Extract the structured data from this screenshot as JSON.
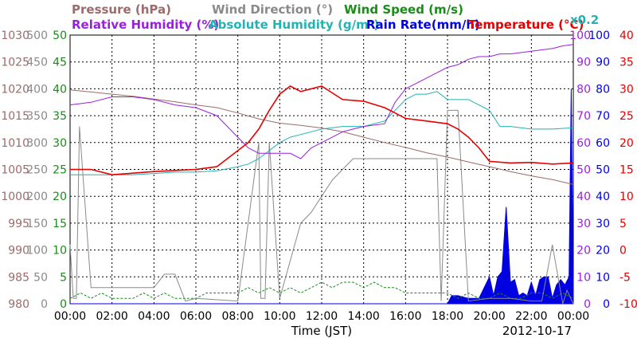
{
  "chart_data": {
    "type": "line",
    "date_label": "2012-10-17",
    "xlabel": "Time (JST)",
    "x_ticks": [
      "00:00",
      "02:00",
      "04:00",
      "06:00",
      "08:00",
      "10:00",
      "12:00",
      "14:00",
      "16:00",
      "18:00",
      "20:00",
      "22:00",
      "00:00"
    ],
    "legend": [
      {
        "key": "pressure",
        "label": "Pressure (hPa)",
        "color": "#9c6b6b"
      },
      {
        "key": "wdir",
        "label": "Wind Direction (°)",
        "color": "#8a8a8a"
      },
      {
        "key": "wspd",
        "label": "Wind Speed (m/s)",
        "color": "#1a8c1a"
      },
      {
        "key": "rh",
        "label": "Relative Humidity (%)",
        "color": "#9a1fe0"
      },
      {
        "key": "ah",
        "label": "Absolute Humidity (g/m³)",
        "color": "#22b4b4"
      },
      {
        "key": "rain",
        "label": "Rain Rate(mm/h)",
        "color": "#0000e0"
      },
      {
        "key": "temp",
        "label": "Temperature (°C)",
        "color": "#e60000"
      },
      {
        "key": "ah_scale",
        "label": "x0.2",
        "color": "#22b4b4"
      }
    ],
    "axes": {
      "pressure": {
        "ticks": [
          "1030",
          "1025",
          "1020",
          "1015",
          "1010",
          "1005",
          "1000",
          "995",
          "990",
          "985",
          "980"
        ],
        "range": [
          980,
          1030
        ],
        "color": "#9c6b6b"
      },
      "wdir": {
        "ticks": [
          "500",
          "450",
          "400",
          "350",
          "300",
          "250",
          "200",
          "150",
          "100",
          "50",
          "0"
        ],
        "range": [
          0,
          500
        ],
        "color": "#8a8a8a"
      },
      "wspd": {
        "ticks": [
          "50",
          "45",
          "40",
          "35",
          "30",
          "25",
          "20",
          "15",
          "10",
          "5",
          "0"
        ],
        "range": [
          0,
          50
        ],
        "color": "#1a8c1a"
      },
      "rh": {
        "ticks": [
          "100",
          "90",
          "80",
          "70",
          "60",
          "50",
          "40",
          "30",
          "20",
          "10",
          "0"
        ],
        "range": [
          0,
          100
        ],
        "color": "#9a1fe0"
      },
      "rain": {
        "ticks": [
          "100",
          "90",
          "80",
          "70",
          "60",
          "50",
          "40",
          "30",
          "20",
          "10",
          "0"
        ],
        "range": [
          0,
          100
        ],
        "color": "#0000e0"
      },
      "temp": {
        "ticks": [
          "40",
          "35",
          "30",
          "25",
          "20",
          "15",
          "10",
          "5",
          "0",
          "-5",
          "-10"
        ],
        "range": [
          -10,
          40
        ],
        "color": "#e60000"
      }
    },
    "series": [
      {
        "key": "pressure",
        "x": [
          0,
          1,
          2,
          3,
          4,
          5,
          6,
          7,
          8,
          9,
          10,
          11,
          12,
          13,
          14,
          15,
          16,
          17,
          18,
          19,
          20,
          21,
          22,
          23,
          24
        ],
        "y": [
          1019.8,
          1019.4,
          1019,
          1018.6,
          1018.1,
          1017.6,
          1017,
          1016.5,
          1015.5,
          1014.4,
          1013.6,
          1013.2,
          1012.7,
          1012,
          1011,
          1010,
          1009.1,
          1008.1,
          1007.3,
          1006.4,
          1005.5,
          1004.6,
          1003.8,
          1003.1,
          1002.2
        ]
      },
      {
        "key": "temp",
        "x": [
          0,
          1,
          2,
          3,
          4,
          5,
          6,
          7,
          8,
          8.5,
          9,
          9.5,
          10,
          10.5,
          11,
          12,
          13,
          14,
          15,
          15.5,
          16,
          17,
          18,
          18.5,
          19,
          19.5,
          20,
          21,
          22,
          23,
          24
        ],
        "y": [
          15,
          15,
          14,
          14.3,
          14.6,
          14.8,
          15,
          15.5,
          18.5,
          20,
          22.5,
          26,
          29,
          30.5,
          29.5,
          30.5,
          28,
          27.7,
          26.5,
          25.5,
          24.5,
          24,
          23.5,
          22.5,
          21,
          19,
          16.5,
          16.2,
          16.3,
          16,
          16.2
        ]
      },
      {
        "key": "rh",
        "x": [
          0,
          1,
          2,
          3,
          4,
          5,
          6,
          7,
          7.5,
          8,
          8.5,
          9,
          9.5,
          10,
          10.5,
          11,
          11.5,
          12,
          12.5,
          13,
          13.5,
          14,
          15,
          15.5,
          16,
          16.5,
          17,
          17.5,
          18,
          18.5,
          19,
          19.5,
          20,
          20.5,
          21,
          22,
          23,
          23.5,
          24
        ],
        "y": [
          74,
          75,
          77,
          77,
          76,
          74,
          73,
          70,
          66,
          62,
          58,
          56,
          56,
          56,
          56,
          54,
          58,
          60,
          62,
          64,
          65,
          66,
          67,
          75,
          80,
          82,
          84,
          86,
          88,
          89,
          91,
          92,
          92,
          93,
          93,
          94,
          95,
          96,
          96.5
        ]
      },
      {
        "key": "ah",
        "x": [
          0,
          1,
          2,
          3,
          4,
          5,
          6,
          7,
          8,
          8.5,
          9,
          9.5,
          10,
          10.5,
          11,
          11.5,
          12,
          13,
          13.5,
          14,
          15,
          16,
          16.5,
          17,
          17.5,
          18,
          19,
          20,
          20.5,
          21,
          22,
          23,
          24
        ],
        "y": [
          48,
          48,
          48,
          48,
          48.5,
          49,
          49,
          49.5,
          51,
          52,
          54,
          57,
          60,
          62,
          63,
          64,
          65,
          66,
          66,
          66,
          68,
          76,
          78,
          78,
          79,
          76,
          76,
          72,
          66,
          66,
          65,
          65,
          65.5
        ]
      },
      {
        "key": "wdir",
        "x": [
          0,
          0.15,
          0.3,
          0.45,
          1,
          2,
          3,
          4,
          4.5,
          5,
          5.5,
          6,
          8,
          9,
          9.1,
          9.3,
          9.5,
          10,
          10.5,
          11,
          11.5,
          12,
          12.5,
          13,
          13.5,
          14,
          14.5,
          15,
          16,
          17,
          17.5,
          17.7,
          18,
          18.5,
          19,
          20,
          20.5,
          21,
          22,
          22.5,
          23,
          23.5,
          23.7,
          24
        ],
        "y": [
          110,
          10,
          10,
          330,
          30,
          30,
          30,
          30,
          55,
          55,
          5,
          10,
          5,
          300,
          10,
          10,
          300,
          10,
          80,
          150,
          170,
          200,
          230,
          250,
          270,
          270,
          270,
          270,
          270,
          270,
          270,
          5,
          360,
          360,
          5,
          10,
          10,
          10,
          5,
          5,
          110,
          0,
          25,
          0
        ]
      },
      {
        "key": "wspd",
        "x": [
          0,
          0.5,
          1,
          1.5,
          2,
          2.5,
          3,
          3.5,
          4,
          4.5,
          5,
          5.5,
          6,
          6.5,
          7,
          7.5,
          8,
          8.5,
          9,
          9.5,
          10,
          10.5,
          11,
          11.5,
          12,
          12.5,
          13,
          13.5,
          14,
          14.5,
          15,
          15.5,
          16,
          16.5,
          17,
          17.5,
          18,
          18.5,
          19,
          19.5,
          20,
          20.5,
          21,
          21.5,
          22,
          22.5,
          23,
          23.5,
          24
        ],
        "y": [
          1,
          2,
          1,
          2,
          1,
          1,
          1,
          2,
          1,
          2,
          1,
          1,
          1,
          2,
          2,
          2,
          2,
          3,
          2,
          3,
          2,
          3,
          2,
          3,
          4,
          3,
          4,
          4,
          3,
          4,
          3,
          3,
          2,
          2,
          2,
          2,
          2,
          1,
          2,
          1,
          1,
          2,
          1,
          1,
          2,
          2,
          1,
          2,
          1
        ]
      },
      {
        "key": "rain",
        "x": [
          0,
          18,
          18.2,
          18.5,
          19,
          19.5,
          20,
          20.2,
          20.4,
          20.6,
          20.8,
          21,
          21.2,
          21.4,
          21.6,
          21.8,
          22,
          22.2,
          22.4,
          22.6,
          22.8,
          23,
          23.2,
          23.4,
          23.6,
          23.8,
          23.9,
          24
        ],
        "y": [
          0,
          0,
          3,
          3,
          2,
          2,
          10,
          3,
          10,
          12,
          36,
          8,
          9,
          3,
          4,
          3,
          8,
          3,
          9,
          10,
          10,
          2,
          7,
          9,
          7,
          10,
          80,
          2
        ]
      }
    ]
  }
}
